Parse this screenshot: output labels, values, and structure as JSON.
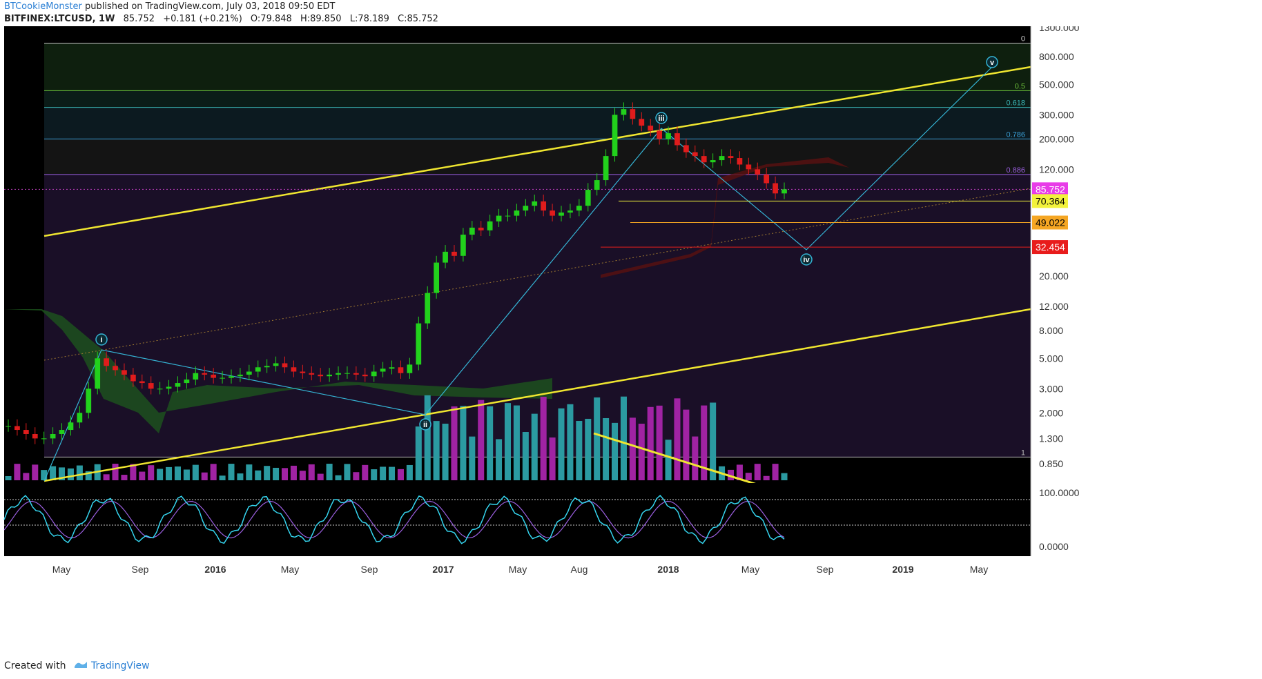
{
  "header": {
    "author": "BTCookieMonster",
    "published": " published on TradingView.com, July 03, 2018 09:50 EDT",
    "symbol": "BITFINEX:LTCUSD, 1W",
    "last": "85.752",
    "change": "+0.181 (+0.21%)",
    "open": "O:79.848",
    "high": "H:89.850",
    "low": "L:78.189",
    "close": "C:85.752"
  },
  "footer": {
    "created_with": "Created with",
    "brand": "TradingView"
  },
  "colors": {
    "background": "#000000",
    "upper_band": "#0b160b",
    "lower_band": "#1a0f27",
    "channel": "#f0e630",
    "wave_line": "#35b5d6",
    "candle_up": "#22d11c",
    "candle_down": "#e01c1c",
    "volume_up": "#2b9aa1",
    "volume_down": "#a023a3",
    "label_price": "#e83ce8",
    "label_70": "#f2f23c",
    "label_49": "#f5a623",
    "label_32": "#e81c1c"
  },
  "chart_data": {
    "type": "candlestick",
    "scale": "log",
    "x_ticks": [
      "May",
      "Sep",
      "2016",
      "May",
      "Sep",
      "2017",
      "May",
      "Aug",
      "2018",
      "May",
      "Sep",
      "2019",
      "May"
    ],
    "y_ticks": [
      "1300.000",
      "800.000",
      "500.000",
      "300.000",
      "200.000",
      "120.000",
      "85.752",
      "70.364",
      "49.022",
      "32.454",
      "20.000",
      "12.000",
      "8.000",
      "5.000",
      "3.000",
      "2.000",
      "1.300",
      "0.850"
    ],
    "fib_levels": [
      {
        "label": "0",
        "value": 1000
      },
      {
        "label": "0.5",
        "value": 450
      },
      {
        "label": "0.618",
        "value": 340
      },
      {
        "label": "0.786",
        "value": 200
      },
      {
        "label": "0.886",
        "value": 110
      },
      {
        "label": "1",
        "value": 0.95
      }
    ],
    "horizontal_levels": [
      {
        "label": "85.752",
        "value": 85.752
      },
      {
        "label": "70.364",
        "value": 70.364
      },
      {
        "label": "49.022",
        "value": 49.022
      },
      {
        "label": "32.454",
        "value": 32.454
      }
    ],
    "wave_labels": [
      {
        "label": "i",
        "date": "2015-07",
        "value": 8.9
      },
      {
        "label": "ii",
        "date": "2016-11",
        "value": 3.0
      },
      {
        "label": "iii",
        "date": "2017-12",
        "value": 370
      },
      {
        "label": "iv",
        "date": "2018-08",
        "value": 43
      },
      {
        "label": "v",
        "date": "2019-05",
        "value": 1000
      }
    ],
    "oscillator_ticks": [
      "100.0000",
      "0.0000"
    ],
    "candles_approx_close": [
      1.6,
      1.5,
      1.4,
      1.3,
      1.3,
      1.4,
      1.5,
      1.7,
      2.0,
      3.0,
      5.0,
      4.4,
      4.1,
      3.8,
      3.4,
      3.3,
      3.0,
      3.0,
      3.1,
      3.3,
      3.5,
      3.9,
      3.8,
      3.6,
      3.6,
      3.7,
      3.8,
      4.0,
      4.3,
      4.4,
      4.6,
      4.3,
      4.0,
      3.9,
      3.8,
      3.7,
      3.8,
      3.9,
      3.9,
      3.8,
      3.7,
      4.0,
      4.2,
      4.3,
      3.9,
      4.5,
      9.0,
      15.0,
      25.0,
      30.0,
      28.0,
      40.0,
      45.0,
      43.0,
      50.0,
      55.0,
      55.0,
      60.0,
      65.0,
      70.0,
      60.0,
      55.0,
      58.0,
      60.0,
      65.0,
      85.0,
      100.0,
      150.0,
      300.0,
      330.0,
      280.0,
      250.0,
      230.0,
      200.0,
      220.0,
      180.0,
      160.0,
      150.0,
      135.0,
      140.0,
      150.0,
      145.0,
      130.0,
      120.0,
      110.0,
      95.0,
      80.0,
      85.752
    ]
  }
}
